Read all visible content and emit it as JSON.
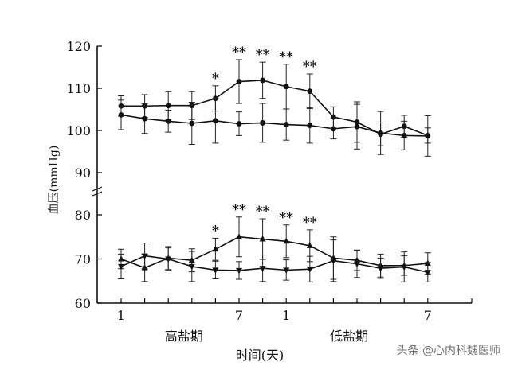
{
  "chart_data": {
    "type": "line",
    "ylabel": "血压(mmHg)",
    "xlabel": "时间(天)",
    "ylim": [
      60,
      120
    ],
    "y_break_between": [
      90,
      80
    ],
    "yticks": [
      60,
      70,
      80,
      90,
      100,
      110,
      120
    ],
    "x": [
      1,
      2,
      3,
      4,
      5,
      6,
      7,
      8,
      9,
      10,
      11,
      12,
      13,
      14
    ],
    "x_tick_labels": [
      {
        "x": 1,
        "label": "1"
      },
      {
        "x": 6,
        "label": "7"
      },
      {
        "x": 8,
        "label": "1"
      },
      {
        "x": 14,
        "label": "7"
      }
    ],
    "period_labels": [
      {
        "label": "高盐期",
        "center": 4
      },
      {
        "label": "低盐期",
        "center": 11
      }
    ],
    "series": [
      {
        "marker": "circle",
        "values": [
          105.8,
          105.8,
          105.9,
          105.9,
          107.6,
          111.6,
          111.9,
          110.4,
          109.3,
          103.2,
          102.0,
          99.1,
          101.0,
          98.8
        ],
        "errors": [
          2.4,
          2.7,
          3.3,
          3.3,
          3.0,
          5.2,
          4.3,
          5.3,
          4.1,
          2.4,
          4.8,
          2.7,
          2.6,
          1.8
        ]
      },
      {
        "marker": "circle",
        "values": [
          103.7,
          102.8,
          102.2,
          101.7,
          102.3,
          101.6,
          101.8,
          101.4,
          101.2,
          100.4,
          100.9,
          99.4,
          98.8,
          98.7
        ],
        "errors": [
          3.5,
          3.5,
          2.6,
          5.0,
          5.3,
          2.8,
          4.6,
          3.7,
          4.2,
          2.4,
          5.3,
          5.1,
          3.4,
          4.8
        ]
      },
      {
        "marker": "triangle-up",
        "values": [
          70.0,
          68.0,
          70.2,
          69.7,
          72.2,
          75.0,
          74.5,
          74.0,
          73.0,
          70.2,
          69.7,
          68.5,
          68.5,
          69.0
        ],
        "errors": [
          2.2,
          3.1,
          2.6,
          2.6,
          2.5,
          4.5,
          4.6,
          3.7,
          3.6,
          4.8,
          2.3,
          2.6,
          2.2,
          2.4
        ]
      },
      {
        "marker": "triangle-down",
        "values": [
          68.3,
          70.7,
          70.0,
          68.3,
          67.5,
          67.4,
          67.9,
          67.5,
          67.7,
          69.6,
          68.9,
          67.9,
          68.2,
          67.0
        ],
        "errors": [
          2.8,
          2.9,
          2.5,
          3.4,
          2.0,
          2.0,
          3.0,
          2.3,
          2.9,
          4.7,
          3.1,
          2.3,
          3.4,
          2.2
        ]
      }
    ],
    "significance": [
      {
        "x": 5,
        "top": "*",
        "bottom": "*"
      },
      {
        "x": 6,
        "top": "**",
        "bottom": "**"
      },
      {
        "x": 7,
        "top": "**",
        "bottom": "**"
      },
      {
        "x": 8,
        "top": "**",
        "bottom": "**"
      },
      {
        "x": 9,
        "top": "**",
        "bottom": "**"
      }
    ]
  },
  "watermark": "头条 @心内科魏医师"
}
